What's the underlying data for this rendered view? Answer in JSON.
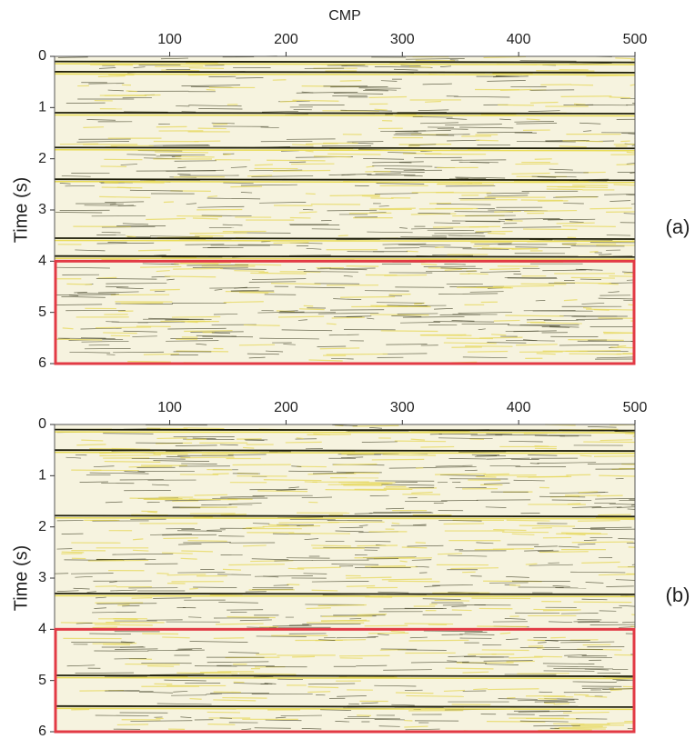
{
  "chart_data": [
    {
      "type": "seismic",
      "xlabel": "CMP",
      "ylabel": "Time (s)",
      "label": "(a)",
      "xlim": [
        1,
        500
      ],
      "xticks": [
        100,
        200,
        300,
        400,
        500
      ],
      "ylim": [
        0,
        6
      ],
      "y_inverted": true,
      "yticks": [
        0,
        1,
        2,
        3,
        4,
        5,
        6
      ],
      "reflectors": [
        0.1,
        0.3,
        1.1,
        1.78,
        2.4,
        3.55,
        3.9
      ],
      "highlight": {
        "ylim": [
          4,
          6
        ],
        "color": "#e23a45"
      }
    },
    {
      "type": "seismic",
      "ylabel": "Time (s)",
      "label": "(b)",
      "xlim": [
        1,
        500
      ],
      "xticks": [
        100,
        200,
        300,
        400,
        500
      ],
      "ylim": [
        0,
        6
      ],
      "y_inverted": true,
      "yticks": [
        0,
        1,
        2,
        3,
        4,
        5,
        6
      ],
      "reflectors": [
        0.1,
        0.5,
        1.78,
        3.3,
        4.9,
        5.5
      ],
      "highlight": {
        "ylim": [
          4,
          6
        ],
        "color": "#e23a45"
      }
    }
  ]
}
